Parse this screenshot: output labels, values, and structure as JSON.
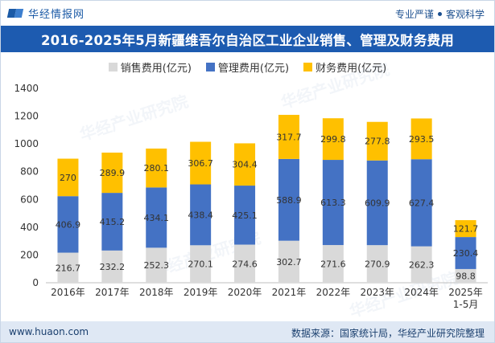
{
  "header": {
    "brand": "华经情报网",
    "tagline_left": "专业严谨",
    "tagline_right": "客观科学",
    "title": "2016-2025年5月新疆维吾尔自治区工业企业销售、管理及财务费用"
  },
  "footer": {
    "url": "www.huaon.com",
    "source": "数据来源：国家统计局，华经产业研究院整理"
  },
  "chart_data": {
    "type": "stacked-bar",
    "categories": [
      "2016年",
      "2017年",
      "2018年",
      "2019年",
      "2020年",
      "2021年",
      "2022年",
      "2023年",
      "2024年",
      "2025年\n1-5月"
    ],
    "series": [
      {
        "name": "销售费用(亿元)",
        "color": "#d9d9d9",
        "values": [
          216.7,
          232.2,
          252.3,
          270.1,
          274.6,
          302.7,
          271.6,
          270.9,
          262.3,
          98.8
        ]
      },
      {
        "name": "管理费用(亿元)",
        "color": "#4472c4",
        "values": [
          406.9,
          415.2,
          434.1,
          438.4,
          425.1,
          588.9,
          613.3,
          609.9,
          627.4,
          230.4
        ]
      },
      {
        "name": "财务费用(亿元)",
        "color": "#ffc000",
        "values": [
          270,
          289.9,
          280.1,
          306.7,
          304.4,
          317.7,
          299.8,
          277.8,
          293.5,
          121.7
        ]
      }
    ],
    "labels": [
      [
        "216.7",
        "232.2",
        "252.3",
        "270.1",
        "274.6",
        "302.7",
        "271.6",
        "270.9",
        "262.3",
        "98.8"
      ],
      [
        "406.9",
        "415.2",
        "434.1",
        "438.4",
        "425.1",
        "588.9",
        "613.3",
        "609.9",
        "627.4",
        "230.4"
      ],
      [
        "270",
        "289.9",
        "280.1",
        "306.7",
        "304.4",
        "317.7",
        "299.8",
        "277.8",
        "293.5",
        "121.7"
      ]
    ],
    "ylim": [
      0,
      1400
    ],
    "yticks": [
      0,
      200,
      400,
      600,
      800,
      1000,
      1200,
      1400
    ],
    "legend_position": "top-center",
    "grid": false
  },
  "watermark": "华经产业研究院"
}
